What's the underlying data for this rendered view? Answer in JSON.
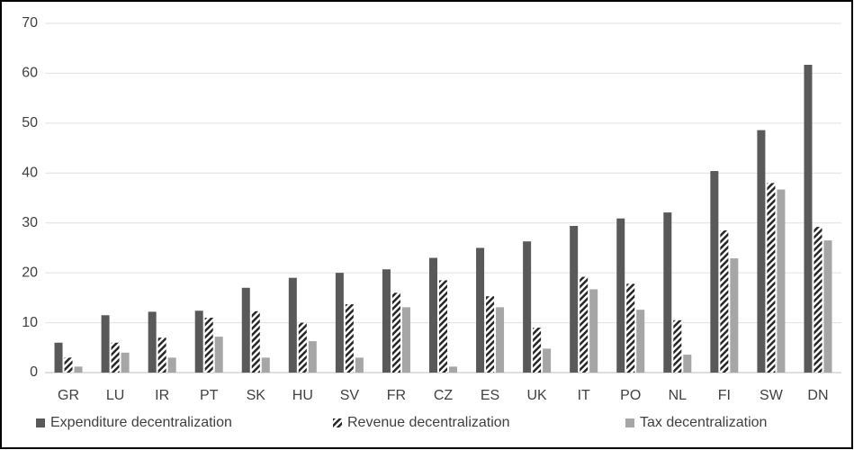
{
  "chart_data": {
    "type": "bar",
    "categories": [
      "GR",
      "LU",
      "IR",
      "PT",
      "SK",
      "HU",
      "SV",
      "FR",
      "CZ",
      "ES",
      "UK",
      "IT",
      "PO",
      "NL",
      "FI",
      "SW",
      "DN"
    ],
    "series": [
      {
        "name": "Expenditure decentralization",
        "color": "#595959",
        "values": [
          6.0,
          11.5,
          12.2,
          12.4,
          17.0,
          19.0,
          20.0,
          20.7,
          23.0,
          25.0,
          26.3,
          29.4,
          30.9,
          32.1,
          40.4,
          48.6,
          61.7
        ]
      },
      {
        "name": "Revenue decentralization",
        "color": "#262626",
        "pattern": "hatch",
        "values": [
          3.0,
          6.0,
          7.0,
          11.0,
          12.3,
          10.0,
          13.7,
          16.0,
          18.5,
          15.3,
          9.0,
          19.2,
          17.8,
          10.5,
          28.5,
          38.0,
          29.2
        ]
      },
      {
        "name": "Tax decentralization",
        "color": "#a6a6a6",
        "values": [
          1.2,
          4.0,
          3.0,
          7.2,
          3.0,
          6.3,
          3.0,
          13.1,
          1.2,
          13.1,
          4.8,
          16.7,
          12.6,
          3.6,
          22.9,
          36.7,
          26.5
        ]
      }
    ],
    "ylim": [
      0,
      70
    ],
    "yticks": [
      0,
      10,
      20,
      30,
      40,
      50,
      60,
      70
    ],
    "grid": true,
    "legend": "bottom"
  }
}
